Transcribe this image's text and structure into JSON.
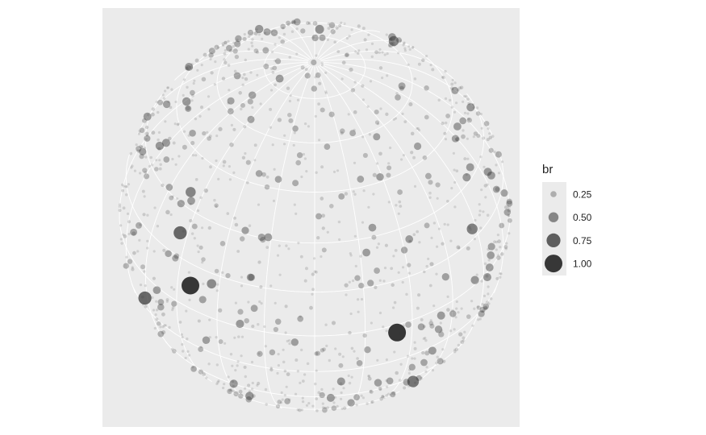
{
  "chart_data": {
    "type": "scatter",
    "title": "",
    "projection": "orthographic sky map (stars)",
    "grid": true,
    "legend": {
      "title": "br",
      "placement": "right",
      "entries": [
        {
          "label": "0.25",
          "value": 0.25
        },
        {
          "label": "0.50",
          "value": 0.5
        },
        {
          "label": "0.75",
          "value": 0.75
        },
        {
          "label": "1.00",
          "value": 1.0
        }
      ]
    },
    "colors": {
      "panel_background": "#ebebeb",
      "grid": "#ffffff",
      "point_base": "#333333"
    },
    "bright_stars": [
      {
        "lon": -40,
        "lat": 8,
        "br": 1.0
      },
      {
        "lon": 25,
        "lat": -3,
        "br": 1.0
      },
      {
        "lon": -62,
        "lat": -10,
        "br": 0.7
      },
      {
        "lon": -48,
        "lat": 22,
        "br": 0.7
      },
      {
        "lon": 38,
        "lat": -35,
        "br": 0.6
      },
      {
        "lon": -2,
        "lat": -55,
        "br": 0.7
      },
      {
        "lon": 58,
        "lat": 18,
        "br": 0.55
      },
      {
        "lon": -28,
        "lat": -70,
        "br": 0.6
      }
    ]
  }
}
